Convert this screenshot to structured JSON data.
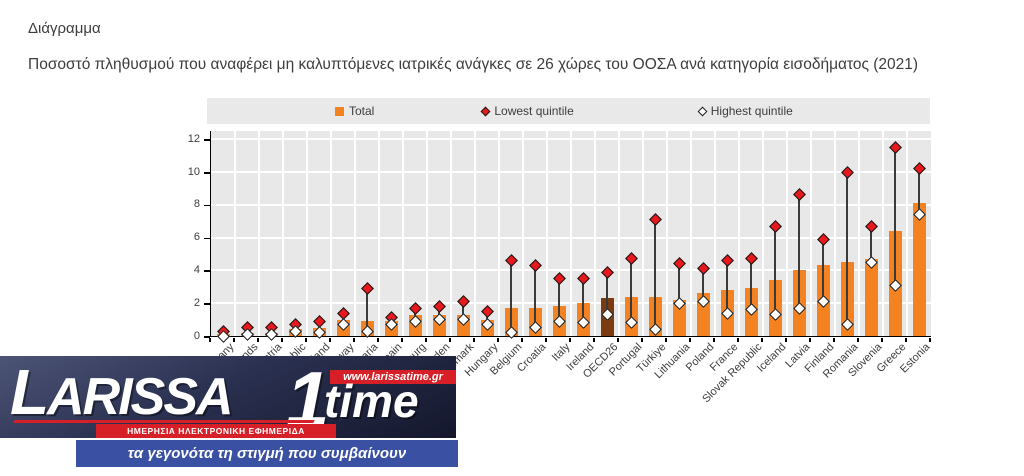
{
  "page": {
    "label": "Διάγραμμα",
    "title": "Ποσοστό πληθυσμού που αναφέρει μη καλυπτόμενες ιατρικές ανάγκες σε 26 χώρες του ΟΟΣΑ ανά κατηγορία εισοδήματος (2021)"
  },
  "legend": {
    "total_label": "Total",
    "lowest_label": "Lowest quintile",
    "highest_label": "Highest quintile"
  },
  "chart_data": {
    "type": "bar",
    "title": "Ποσοστό πληθυσμού που αναφέρει μη καλυπτόμενες ιατρικές ανάγκες σε 26 χώρες του ΟΟΣΑ ανά κατηγορία εισοδήματος (2021)",
    "xlabel": "",
    "ylabel": "",
    "ylim": [
      0,
      12
    ],
    "yticks": [
      0,
      2,
      4,
      6,
      8,
      10,
      12
    ],
    "grid": true,
    "legend_position": "top",
    "categories": [
      "Germany",
      "Netherlands",
      "Austria",
      "Czech Republic",
      "Switzerland",
      "Norway",
      "Bulgaria",
      "Spain",
      "Luxembourg",
      "Sweden",
      "Denmark",
      "Hungary",
      "Belgium",
      "Croatia",
      "Italy",
      "Ireland",
      "OECD26",
      "Portugal",
      "Türkiye",
      "Lithuania",
      "Poland",
      "France",
      "Slovak Republic",
      "Iceland",
      "Latvia",
      "Finland",
      "Romania",
      "Slovenia",
      "Greece",
      "Estonia"
    ],
    "series": [
      {
        "name": "Total",
        "style": "bar",
        "values": [
          0.1,
          0.2,
          0.2,
          0.4,
          0.5,
          1.0,
          0.9,
          0.9,
          1.3,
          1.3,
          1.3,
          1.0,
          1.7,
          1.7,
          1.8,
          2.0,
          2.3,
          2.4,
          2.4,
          2.2,
          2.6,
          2.8,
          2.9,
          3.4,
          4.0,
          4.3,
          4.5,
          4.7,
          6.4,
          8.1
        ]
      },
      {
        "name": "Lowest quintile",
        "style": "diamond-red",
        "values": [
          0.3,
          0.5,
          0.5,
          0.7,
          0.9,
          1.4,
          2.9,
          1.1,
          1.7,
          1.8,
          2.1,
          1.5,
          4.6,
          4.3,
          3.5,
          3.5,
          3.9,
          4.7,
          7.1,
          4.4,
          4.1,
          4.6,
          4.7,
          6.7,
          8.6,
          5.9,
          10.0,
          6.7,
          11.5,
          10.2
        ]
      },
      {
        "name": "Highest quintile",
        "style": "diamond-white",
        "values": [
          0.0,
          0.1,
          0.1,
          0.3,
          0.2,
          0.7,
          0.3,
          0.7,
          0.9,
          1.0,
          1.0,
          0.7,
          0.2,
          0.5,
          0.9,
          0.8,
          1.3,
          0.8,
          0.4,
          2.0,
          2.1,
          1.4,
          1.6,
          1.3,
          1.7,
          2.1,
          0.7,
          4.5,
          3.1,
          7.4
        ]
      }
    ],
    "highlight_category": "OECD26",
    "colors": {
      "bar": "#F58220",
      "highlight_bar": "#7C3A11",
      "lowest_marker": "#E8191C",
      "highest_marker": "#FFFFFF",
      "plot_background": "#e8e8e8",
      "stem": "#3a3a3a"
    }
  },
  "watermark": {
    "brand_primary": "LARISSA",
    "brand_numeral": "1",
    "brand_secondary": "time",
    "url": "www.larissatime.gr",
    "subtitle": "ΗΜΕΡΗΣΙΑ ΗΛΕΚΤΡΟΝΙΚΗ ΕΦΗΜΕΡΙΔΑ",
    "tagline": "τα γεγονότα τη στιγμή που συμβαίνουν",
    "colors": {
      "red": "#d61f26",
      "blue": "#3a51a3",
      "navy": "#1d2038"
    }
  }
}
